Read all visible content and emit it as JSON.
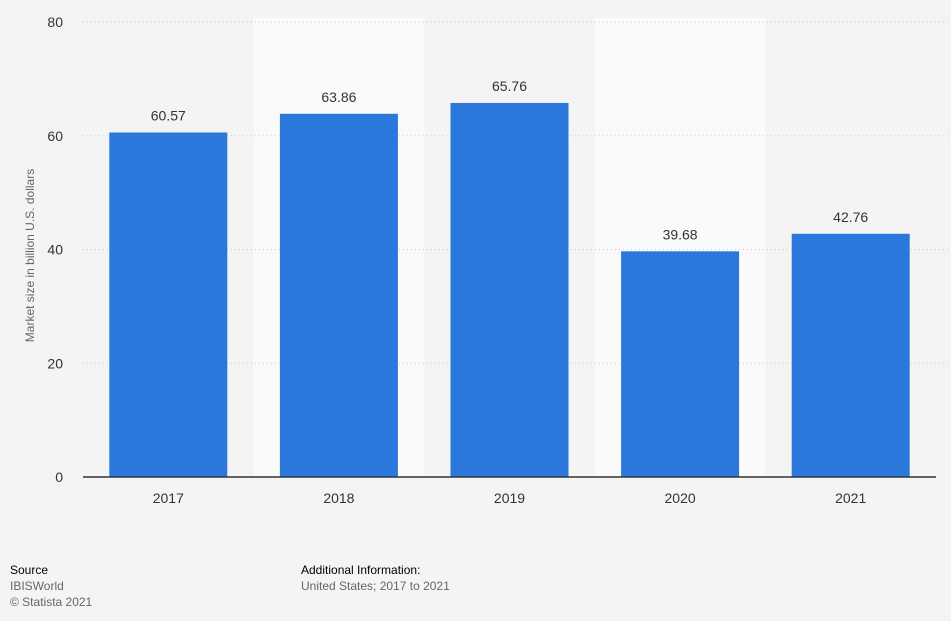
{
  "chart_data": {
    "type": "bar",
    "categories": [
      "2017",
      "2018",
      "2019",
      "2020",
      "2021"
    ],
    "values": [
      60.57,
      63.86,
      65.76,
      39.68,
      42.76
    ],
    "value_labels": [
      "60.57",
      "63.86",
      "65.76",
      "39.68",
      "42.76"
    ],
    "title": "",
    "xlabel": "",
    "ylabel": "Market size in billion U.S. dollars",
    "ylim": [
      0,
      80
    ],
    "yticks": [
      0,
      20,
      40,
      60,
      80
    ],
    "grid": true,
    "legend": "none",
    "colors": {
      "bar": "#2a78dc",
      "band": "#fafafa",
      "grid": "#cccccc",
      "axis": "#333333",
      "text": "#333333",
      "muted": "#666666"
    }
  },
  "footer": {
    "source_heading": "Source",
    "source_name": "IBISWorld",
    "copyright": "© Statista 2021",
    "info_heading": "Additional Information:",
    "info_text": "United States; 2017 to 2021"
  }
}
